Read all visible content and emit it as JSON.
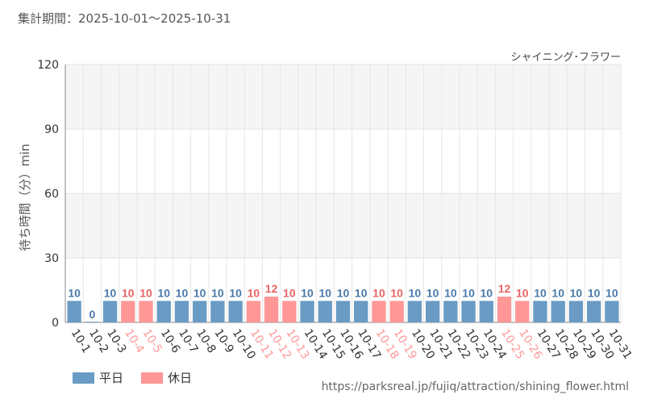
{
  "period_label": "集計期間：2025-10-01～2025-10-31",
  "attraction_name": "シャイニング･フラワー",
  "source_url": "https://parksreal.jp/fujiq/attraction/shining_flower.html",
  "colors": {
    "weekday": "#6a9bc4",
    "holiday": "#ff9797",
    "weekday_label": "#4a7bab",
    "holiday_label": "#e86464"
  },
  "chart_data": {
    "type": "bar",
    "ylabel": "待ち時間（分）min",
    "ylim": [
      0,
      120
    ],
    "yticks": [
      0,
      30,
      60,
      90,
      120
    ],
    "categories": [
      "10-1",
      "10-2",
      "10-3",
      "10-4",
      "10-5",
      "10-6",
      "10-7",
      "10-8",
      "10-9",
      "10-10",
      "10-11",
      "10-12",
      "10-13",
      "10-14",
      "10-15",
      "10-16",
      "10-17",
      "10-18",
      "10-19",
      "10-20",
      "10-21",
      "10-22",
      "10-23",
      "10-24",
      "10-25",
      "10-26",
      "10-27",
      "10-28",
      "10-29",
      "10-30",
      "10-31"
    ],
    "values": [
      10,
      0,
      10,
      10,
      10,
      10,
      10,
      10,
      10,
      10,
      10,
      12,
      10,
      10,
      10,
      10,
      10,
      10,
      10,
      10,
      10,
      10,
      10,
      10,
      12,
      10,
      10,
      10,
      10,
      10,
      10
    ],
    "day_type": [
      "平日",
      "平日",
      "平日",
      "休日",
      "休日",
      "平日",
      "平日",
      "平日",
      "平日",
      "平日",
      "休日",
      "休日",
      "休日",
      "平日",
      "平日",
      "平日",
      "平日",
      "休日",
      "休日",
      "平日",
      "平日",
      "平日",
      "平日",
      "平日",
      "休日",
      "休日",
      "平日",
      "平日",
      "平日",
      "平日",
      "平日"
    ],
    "legend": [
      {
        "name": "平日",
        "color": "#6a9bc4"
      },
      {
        "name": "休日",
        "color": "#ff9797"
      }
    ],
    "legend_position": "bottom-left",
    "grid": true
  }
}
